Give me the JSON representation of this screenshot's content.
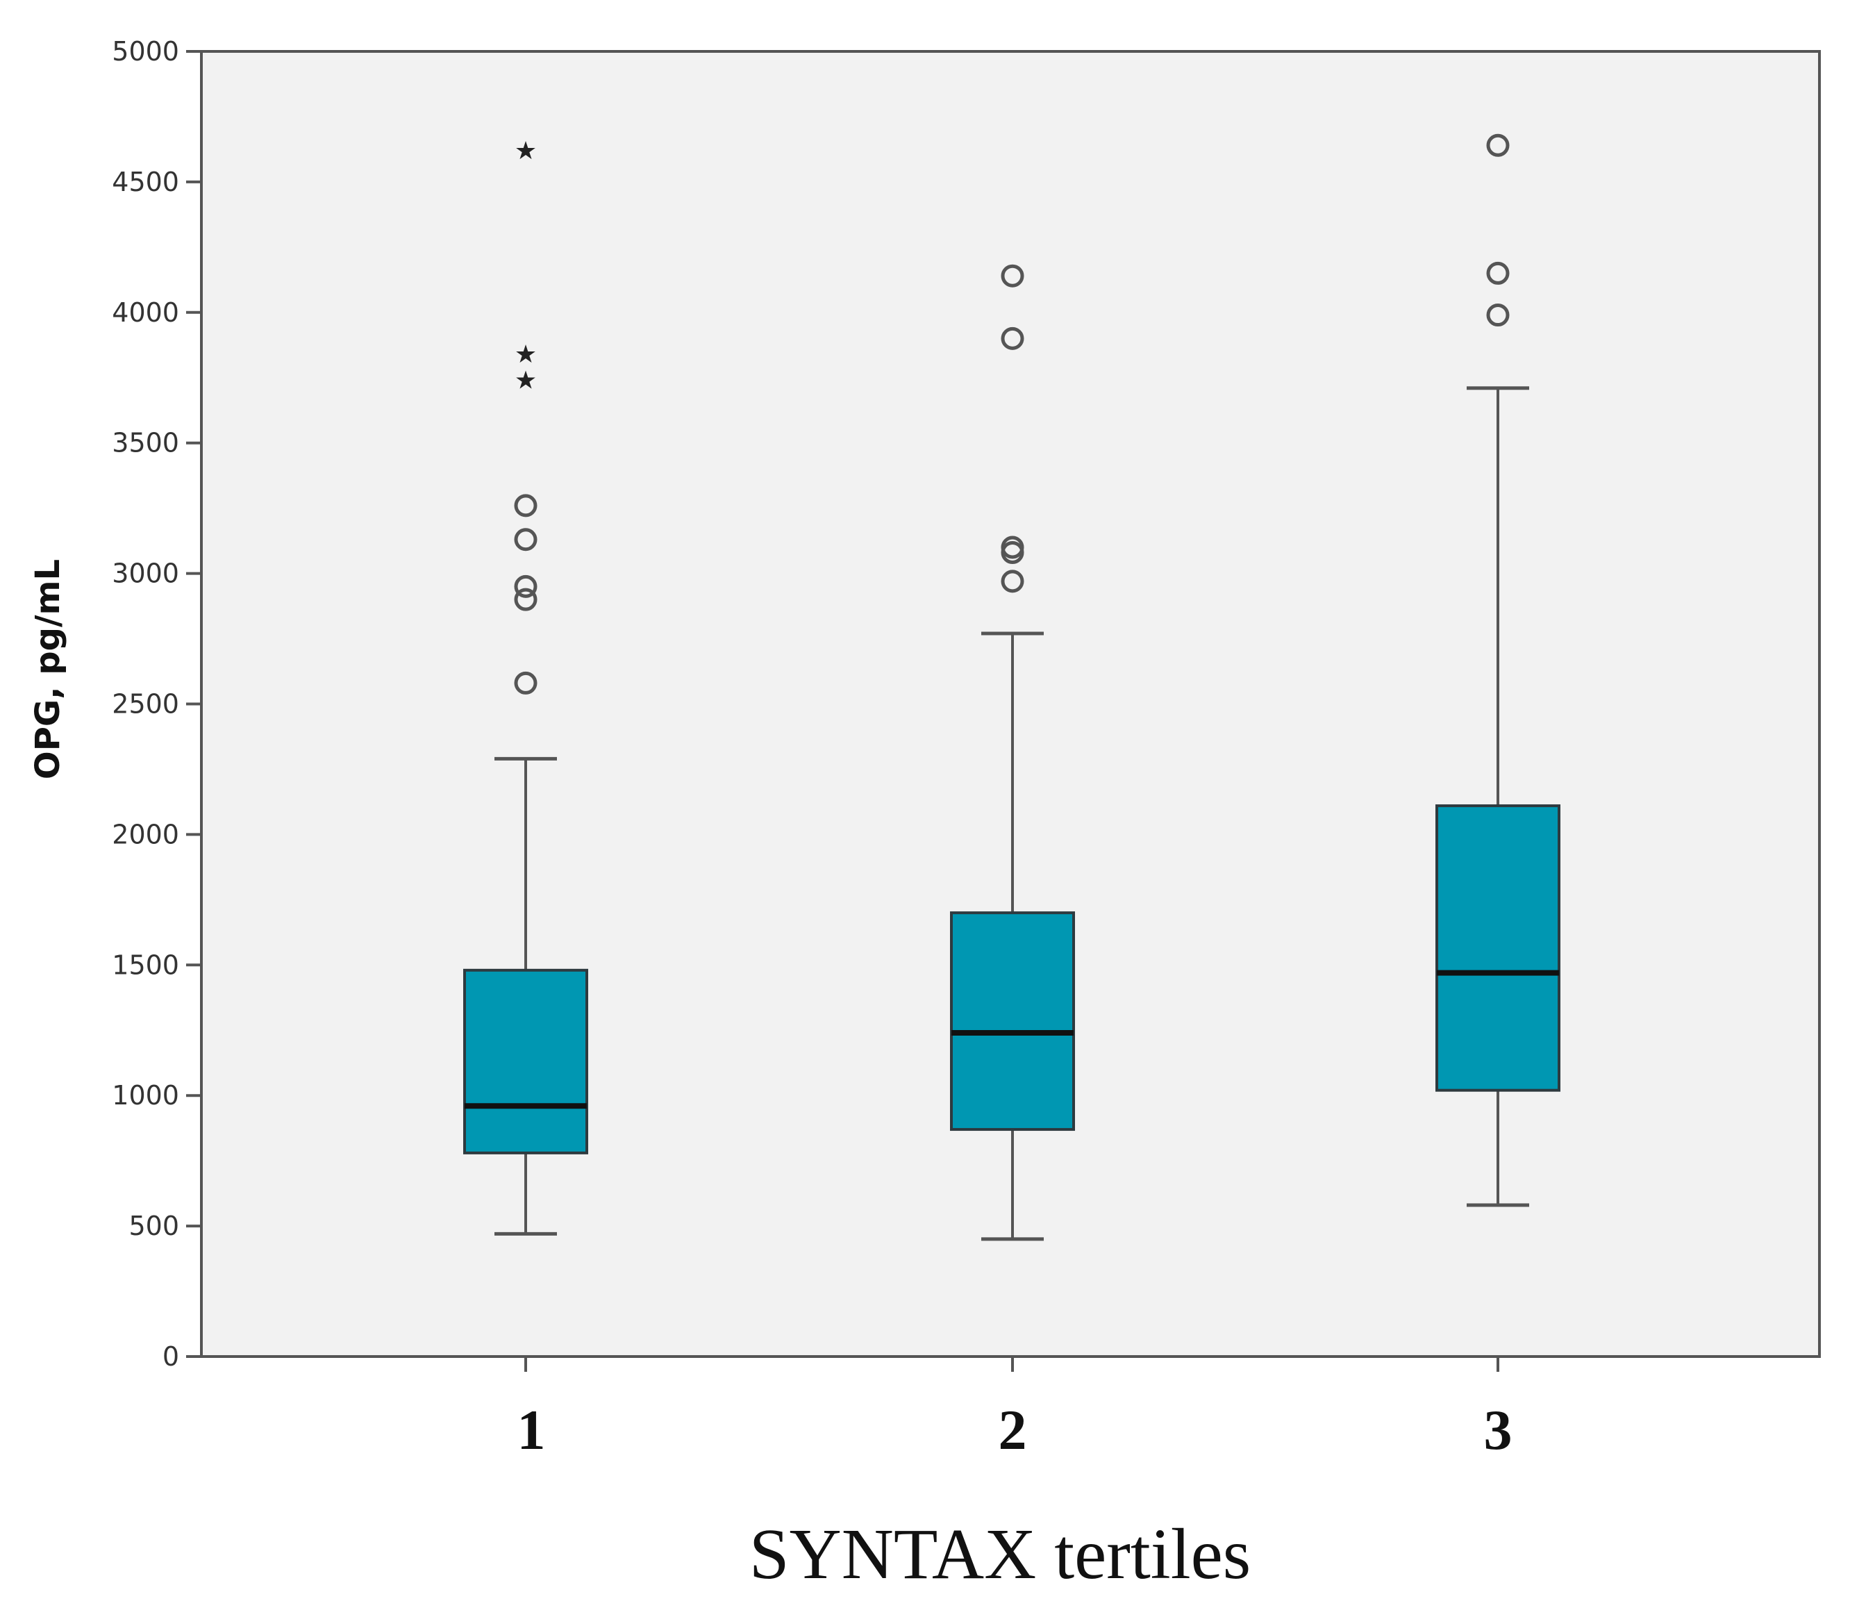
{
  "chart_data": {
    "type": "boxplot",
    "title": "",
    "xlabel": "SYNTAX tertiles",
    "ylabel": "OPG, pg/mL",
    "ylim": [
      0,
      5000
    ],
    "yticks": [
      0,
      500,
      1000,
      1500,
      2000,
      2500,
      3000,
      3500,
      4000,
      4500,
      5000
    ],
    "categories": [
      "1",
      "2",
      "3"
    ],
    "boxes": [
      {
        "category": "1",
        "whisker_low": 470,
        "q1": 780,
        "median": 960,
        "q3": 1480,
        "whisker_high": 2290,
        "outliers": [
          2580,
          2900,
          2950,
          3130,
          3260
        ],
        "extremes": [
          3740,
          3840,
          4620
        ]
      },
      {
        "category": "2",
        "whisker_low": 450,
        "q1": 870,
        "median": 1240,
        "q3": 1700,
        "whisker_high": 2770,
        "outliers": [
          2970,
          3080,
          3100,
          3900,
          4140
        ],
        "extremes": []
      },
      {
        "category": "3",
        "whisker_low": 580,
        "q1": 1020,
        "median": 1470,
        "q3": 2110,
        "whisker_high": 3710,
        "outliers": [
          3990,
          4150,
          4640
        ],
        "extremes": []
      }
    ],
    "grid": false,
    "colors": {
      "box_fill": "#0097b2",
      "box_stroke": "#2e3a3f",
      "median": "#111111",
      "plot_bg": "#f2f2f2",
      "axis": "#555555",
      "whisker": "#555555",
      "outlier": "#555555"
    }
  }
}
